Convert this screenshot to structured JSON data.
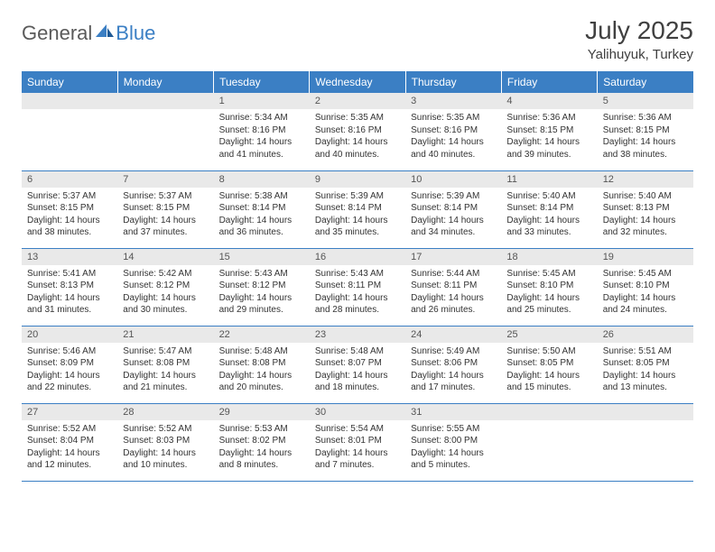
{
  "logo": {
    "part1": "General",
    "part2": "Blue"
  },
  "title": "July 2025",
  "location": "Yalihuyuk, Turkey",
  "day_headers": [
    "Sunday",
    "Monday",
    "Tuesday",
    "Wednesday",
    "Thursday",
    "Friday",
    "Saturday"
  ],
  "header_bg": "#3b7fc4",
  "header_fg": "#ffffff",
  "daynum_bg": "#e9e9e9",
  "cell_border": "#3b7fc4",
  "text_color": "#333333",
  "title_color": "#404040",
  "font_family": "Arial",
  "title_fontsize": 28,
  "location_fontsize": 15,
  "header_fontsize": 12,
  "daynum_fontsize": 11,
  "body_fontsize": 10,
  "weeks": [
    [
      {
        "n": "",
        "sr": "",
        "ss": "",
        "dl": ""
      },
      {
        "n": "",
        "sr": "",
        "ss": "",
        "dl": ""
      },
      {
        "n": "1",
        "sr": "Sunrise: 5:34 AM",
        "ss": "Sunset: 8:16 PM",
        "dl": "Daylight: 14 hours and 41 minutes."
      },
      {
        "n": "2",
        "sr": "Sunrise: 5:35 AM",
        "ss": "Sunset: 8:16 PM",
        "dl": "Daylight: 14 hours and 40 minutes."
      },
      {
        "n": "3",
        "sr": "Sunrise: 5:35 AM",
        "ss": "Sunset: 8:16 PM",
        "dl": "Daylight: 14 hours and 40 minutes."
      },
      {
        "n": "4",
        "sr": "Sunrise: 5:36 AM",
        "ss": "Sunset: 8:15 PM",
        "dl": "Daylight: 14 hours and 39 minutes."
      },
      {
        "n": "5",
        "sr": "Sunrise: 5:36 AM",
        "ss": "Sunset: 8:15 PM",
        "dl": "Daylight: 14 hours and 38 minutes."
      }
    ],
    [
      {
        "n": "6",
        "sr": "Sunrise: 5:37 AM",
        "ss": "Sunset: 8:15 PM",
        "dl": "Daylight: 14 hours and 38 minutes."
      },
      {
        "n": "7",
        "sr": "Sunrise: 5:37 AM",
        "ss": "Sunset: 8:15 PM",
        "dl": "Daylight: 14 hours and 37 minutes."
      },
      {
        "n": "8",
        "sr": "Sunrise: 5:38 AM",
        "ss": "Sunset: 8:14 PM",
        "dl": "Daylight: 14 hours and 36 minutes."
      },
      {
        "n": "9",
        "sr": "Sunrise: 5:39 AM",
        "ss": "Sunset: 8:14 PM",
        "dl": "Daylight: 14 hours and 35 minutes."
      },
      {
        "n": "10",
        "sr": "Sunrise: 5:39 AM",
        "ss": "Sunset: 8:14 PM",
        "dl": "Daylight: 14 hours and 34 minutes."
      },
      {
        "n": "11",
        "sr": "Sunrise: 5:40 AM",
        "ss": "Sunset: 8:14 PM",
        "dl": "Daylight: 14 hours and 33 minutes."
      },
      {
        "n": "12",
        "sr": "Sunrise: 5:40 AM",
        "ss": "Sunset: 8:13 PM",
        "dl": "Daylight: 14 hours and 32 minutes."
      }
    ],
    [
      {
        "n": "13",
        "sr": "Sunrise: 5:41 AM",
        "ss": "Sunset: 8:13 PM",
        "dl": "Daylight: 14 hours and 31 minutes."
      },
      {
        "n": "14",
        "sr": "Sunrise: 5:42 AM",
        "ss": "Sunset: 8:12 PM",
        "dl": "Daylight: 14 hours and 30 minutes."
      },
      {
        "n": "15",
        "sr": "Sunrise: 5:43 AM",
        "ss": "Sunset: 8:12 PM",
        "dl": "Daylight: 14 hours and 29 minutes."
      },
      {
        "n": "16",
        "sr": "Sunrise: 5:43 AM",
        "ss": "Sunset: 8:11 PM",
        "dl": "Daylight: 14 hours and 28 minutes."
      },
      {
        "n": "17",
        "sr": "Sunrise: 5:44 AM",
        "ss": "Sunset: 8:11 PM",
        "dl": "Daylight: 14 hours and 26 minutes."
      },
      {
        "n": "18",
        "sr": "Sunrise: 5:45 AM",
        "ss": "Sunset: 8:10 PM",
        "dl": "Daylight: 14 hours and 25 minutes."
      },
      {
        "n": "19",
        "sr": "Sunrise: 5:45 AM",
        "ss": "Sunset: 8:10 PM",
        "dl": "Daylight: 14 hours and 24 minutes."
      }
    ],
    [
      {
        "n": "20",
        "sr": "Sunrise: 5:46 AM",
        "ss": "Sunset: 8:09 PM",
        "dl": "Daylight: 14 hours and 22 minutes."
      },
      {
        "n": "21",
        "sr": "Sunrise: 5:47 AM",
        "ss": "Sunset: 8:08 PM",
        "dl": "Daylight: 14 hours and 21 minutes."
      },
      {
        "n": "22",
        "sr": "Sunrise: 5:48 AM",
        "ss": "Sunset: 8:08 PM",
        "dl": "Daylight: 14 hours and 20 minutes."
      },
      {
        "n": "23",
        "sr": "Sunrise: 5:48 AM",
        "ss": "Sunset: 8:07 PM",
        "dl": "Daylight: 14 hours and 18 minutes."
      },
      {
        "n": "24",
        "sr": "Sunrise: 5:49 AM",
        "ss": "Sunset: 8:06 PM",
        "dl": "Daylight: 14 hours and 17 minutes."
      },
      {
        "n": "25",
        "sr": "Sunrise: 5:50 AM",
        "ss": "Sunset: 8:05 PM",
        "dl": "Daylight: 14 hours and 15 minutes."
      },
      {
        "n": "26",
        "sr": "Sunrise: 5:51 AM",
        "ss": "Sunset: 8:05 PM",
        "dl": "Daylight: 14 hours and 13 minutes."
      }
    ],
    [
      {
        "n": "27",
        "sr": "Sunrise: 5:52 AM",
        "ss": "Sunset: 8:04 PM",
        "dl": "Daylight: 14 hours and 12 minutes."
      },
      {
        "n": "28",
        "sr": "Sunrise: 5:52 AM",
        "ss": "Sunset: 8:03 PM",
        "dl": "Daylight: 14 hours and 10 minutes."
      },
      {
        "n": "29",
        "sr": "Sunrise: 5:53 AM",
        "ss": "Sunset: 8:02 PM",
        "dl": "Daylight: 14 hours and 8 minutes."
      },
      {
        "n": "30",
        "sr": "Sunrise: 5:54 AM",
        "ss": "Sunset: 8:01 PM",
        "dl": "Daylight: 14 hours and 7 minutes."
      },
      {
        "n": "31",
        "sr": "Sunrise: 5:55 AM",
        "ss": "Sunset: 8:00 PM",
        "dl": "Daylight: 14 hours and 5 minutes."
      },
      {
        "n": "",
        "sr": "",
        "ss": "",
        "dl": ""
      },
      {
        "n": "",
        "sr": "",
        "ss": "",
        "dl": ""
      }
    ]
  ]
}
